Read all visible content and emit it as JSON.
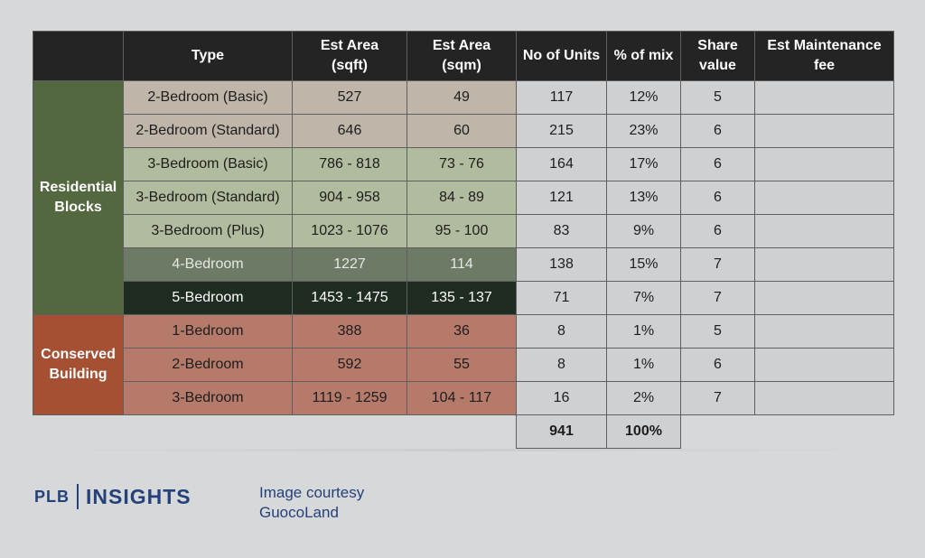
{
  "headers": {
    "type": "Type",
    "area_sqft": [
      "Est Area",
      "(sqft)"
    ],
    "area_sqm": [
      "Est Area",
      "(sqm)"
    ],
    "units": "No of Units",
    "mix": "% of mix",
    "share": [
      "Share",
      "value"
    ],
    "fee": [
      "Est Maintenance",
      "fee"
    ]
  },
  "groups": [
    {
      "label": [
        "Residential",
        "Blocks"
      ],
      "color": "#546840"
    },
    {
      "label": [
        "Conserved",
        "Building"
      ],
      "color": "#a54f33"
    }
  ],
  "rows": [
    {
      "type": "2-Bedroom (Basic)",
      "sqft": "527",
      "sqm": "49",
      "units": "117",
      "mix": "12%",
      "share": "5",
      "fee": "",
      "bg": "#bfb5a8",
      "fg": "#1d1d1d"
    },
    {
      "type": "2-Bedroom (Standard)",
      "sqft": "646",
      "sqm": "60",
      "units": "215",
      "mix": "23%",
      "share": "6",
      "fee": "",
      "bg": "#bfb5a8",
      "fg": "#1d1d1d"
    },
    {
      "type": "3-Bedroom (Basic)",
      "sqft": "786 - 818",
      "sqm": "73 - 76",
      "units": "164",
      "mix": "17%",
      "share": "6",
      "fee": "",
      "bg": "#b1bb9e",
      "fg": "#1d1d1d"
    },
    {
      "type": "3-Bedroom (Standard)",
      "sqft": "904 - 958",
      "sqm": "84 - 89",
      "units": "121",
      "mix": "13%",
      "share": "6",
      "fee": "",
      "bg": "#b1bb9e",
      "fg": "#1d1d1d"
    },
    {
      "type": "3-Bedroom (Plus)",
      "sqft": "1023 - 1076",
      "sqm": "95 - 100",
      "units": "83",
      "mix": "9%",
      "share": "6",
      "fee": "",
      "bg": "#b1bb9e",
      "fg": "#1d1d1d"
    },
    {
      "type": "4-Bedroom",
      "sqft": "1227",
      "sqm": "114",
      "units": "138",
      "mix": "15%",
      "share": "7",
      "fee": "",
      "bg": "#6c7a66",
      "fg": "#e6e9e3"
    },
    {
      "type": "5-Bedroom",
      "sqft": "1453 - 1475",
      "sqm": "135 - 137",
      "units": "71",
      "mix": "7%",
      "share": "7",
      "fee": "",
      "bg": "#1e2c22",
      "fg": "#ffffff"
    },
    {
      "type": "1-Bedroom",
      "sqft": "388",
      "sqm": "36",
      "units": "8",
      "mix": "1%",
      "share": "5",
      "fee": "",
      "bg": "#b57a6a",
      "fg": "#1d1d1d"
    },
    {
      "type": "2-Bedroom",
      "sqft": "592",
      "sqm": "55",
      "units": "8",
      "mix": "1%",
      "share": "6",
      "fee": "",
      "bg": "#b57a6a",
      "fg": "#1d1d1d"
    },
    {
      "type": "3-Bedroom",
      "sqft": "1119 - 1259",
      "sqm": "104 - 117",
      "units": "16",
      "mix": "2%",
      "share": "7",
      "fee": "",
      "bg": "#b57a6a",
      "fg": "#1d1d1d"
    }
  ],
  "totals": {
    "units": "941",
    "mix": "100%"
  },
  "footer": {
    "logo_left": "PLB",
    "logo_right": "INSIGHTS",
    "courtesy_line1": "Image courtesy",
    "courtesy_line2": "GuocoLand"
  },
  "colors": {
    "header_bg": "#242424",
    "data_grey": "#cfd0d2",
    "brand_blue": "#24417a"
  }
}
